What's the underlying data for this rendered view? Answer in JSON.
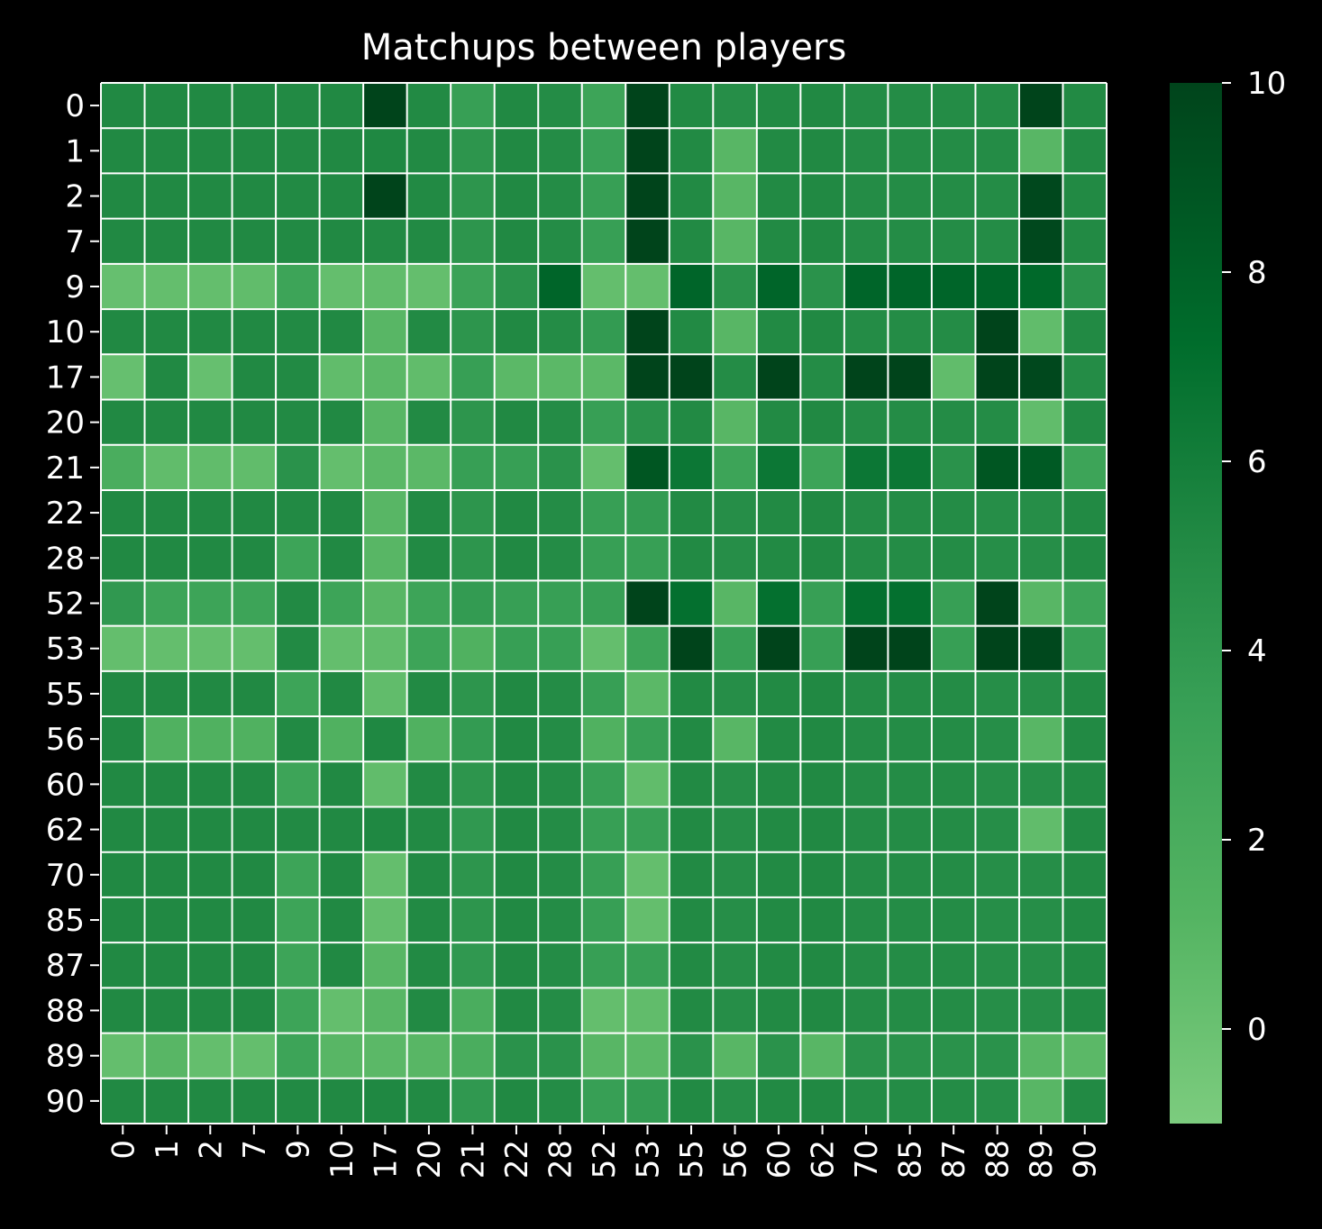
{
  "chart_data": {
    "type": "heatmap",
    "title": "Matchups between players",
    "xlabel": "",
    "ylabel": "",
    "x_categories": [
      "0",
      "1",
      "2",
      "7",
      "9",
      "10",
      "17",
      "20",
      "21",
      "22",
      "28",
      "52",
      "53",
      "55",
      "56",
      "60",
      "62",
      "70",
      "85",
      "87",
      "88",
      "89",
      "90"
    ],
    "y_categories": [
      "0",
      "1",
      "2",
      "7",
      "9",
      "10",
      "17",
      "20",
      "21",
      "22",
      "28",
      "52",
      "53",
      "55",
      "56",
      "60",
      "62",
      "70",
      "85",
      "87",
      "88",
      "89",
      "90"
    ],
    "values": [
      [
        5.2,
        5.2,
        5.2,
        5.2,
        5.1,
        5.2,
        10,
        5.1,
        3.5,
        5.2,
        5.0,
        3.0,
        10,
        5.1,
        4.8,
        5.1,
        5.2,
        5.0,
        5.0,
        5.0,
        5.0,
        10,
        5.1
      ],
      [
        5.2,
        5.2,
        5.2,
        5.2,
        5.1,
        5.2,
        5.3,
        5.1,
        4.3,
        5.2,
        5.0,
        3.3,
        10,
        5.1,
        1.0,
        5.1,
        5.2,
        5.0,
        5.0,
        5.0,
        5.0,
        1.0,
        5.1
      ],
      [
        5.2,
        5.2,
        5.2,
        5.2,
        5.1,
        5.2,
        10,
        5.1,
        4.3,
        5.2,
        5.0,
        3.5,
        10,
        5.1,
        1.0,
        5.1,
        5.2,
        5.0,
        5.0,
        5.0,
        5.0,
        9.7,
        5.1
      ],
      [
        5.2,
        5.2,
        5.2,
        5.2,
        5.1,
        5.2,
        5.1,
        5.1,
        4.3,
        5.2,
        5.0,
        3.5,
        10,
        5.1,
        1.0,
        5.1,
        5.2,
        5.0,
        5.0,
        5.0,
        5.0,
        9.7,
        5.1
      ],
      [
        0.2,
        0.3,
        0.3,
        0.5,
        3.0,
        0.3,
        0.5,
        0.3,
        3.2,
        4.5,
        7.8,
        0.3,
        0.3,
        7.8,
        4.5,
        7.8,
        4.5,
        7.8,
        7.8,
        7.8,
        7.8,
        7.5,
        4.5
      ],
      [
        5.2,
        5.2,
        5.2,
        5.2,
        5.1,
        5.2,
        1.0,
        5.1,
        4.3,
        5.2,
        5.0,
        3.8,
        10,
        5.1,
        1.0,
        5.1,
        5.2,
        5.0,
        5.0,
        5.0,
        10,
        0.5,
        5.1
      ],
      [
        0.2,
        5.2,
        0.2,
        5.2,
        5.1,
        0.5,
        0.8,
        0.5,
        3.5,
        0.8,
        0.8,
        0.8,
        10,
        10,
        5.0,
        10,
        5.0,
        10,
        10,
        0.5,
        10,
        9.7,
        5.0
      ],
      [
        5.2,
        5.2,
        5.2,
        5.2,
        5.1,
        5.2,
        1.0,
        5.1,
        4.3,
        5.2,
        5.0,
        3.5,
        4.5,
        5.1,
        1.0,
        5.1,
        5.2,
        5.0,
        5.0,
        5.0,
        5.0,
        0.5,
        5.1
      ],
      [
        2.0,
        0.5,
        0.5,
        0.5,
        4.5,
        0.3,
        0.8,
        0.8,
        3.5,
        3.5,
        4.5,
        0.3,
        8.8,
        6.5,
        3.0,
        6.5,
        3.0,
        6.5,
        6.5,
        4.5,
        8.8,
        8.5,
        3.0
      ],
      [
        5.2,
        5.2,
        5.2,
        5.2,
        5.1,
        5.2,
        1.0,
        5.1,
        4.3,
        5.2,
        5.0,
        3.5,
        3.8,
        5.1,
        4.8,
        5.1,
        5.2,
        5.0,
        5.0,
        5.0,
        4.8,
        4.8,
        5.1
      ],
      [
        5.2,
        5.2,
        5.2,
        5.2,
        3.0,
        5.2,
        1.0,
        5.1,
        4.3,
        5.2,
        5.0,
        3.5,
        3.5,
        5.1,
        4.8,
        5.1,
        5.2,
        5.0,
        5.0,
        5.0,
        4.8,
        4.8,
        5.1
      ],
      [
        4.0,
        3.0,
        3.0,
        3.0,
        5.1,
        3.0,
        1.0,
        3.0,
        3.8,
        3.5,
        3.5,
        3.5,
        10,
        7.0,
        1.0,
        7.0,
        3.5,
        7.0,
        7.0,
        3.5,
        10,
        1.0,
        3.0
      ],
      [
        0.3,
        0.3,
        0.3,
        0.3,
        5.1,
        0.3,
        0.5,
        3.0,
        1.5,
        3.5,
        3.5,
        0.3,
        3.0,
        10,
        3.5,
        10,
        3.5,
        10,
        10,
        3.5,
        10,
        9.7,
        3.5
      ],
      [
        5.2,
        5.2,
        5.2,
        5.2,
        3.0,
        5.2,
        0.5,
        5.1,
        4.3,
        5.2,
        5.0,
        3.5,
        0.8,
        5.1,
        4.8,
        5.1,
        5.2,
        5.0,
        5.0,
        5.0,
        4.8,
        4.8,
        5.1
      ],
      [
        5.2,
        1.5,
        1.5,
        1.5,
        5.1,
        1.5,
        5.3,
        1.5,
        3.8,
        5.2,
        5.0,
        1.5,
        3.5,
        5.1,
        1.0,
        5.1,
        5.2,
        5.0,
        5.0,
        5.0,
        4.8,
        1.0,
        5.1
      ],
      [
        5.2,
        5.2,
        5.2,
        5.2,
        3.0,
        5.2,
        0.5,
        5.1,
        4.3,
        5.2,
        5.0,
        3.5,
        0.5,
        5.1,
        4.8,
        5.1,
        5.2,
        5.0,
        5.0,
        5.0,
        4.8,
        4.8,
        5.1
      ],
      [
        5.2,
        5.2,
        5.2,
        5.2,
        5.1,
        5.2,
        5.3,
        5.1,
        4.0,
        5.2,
        5.0,
        3.5,
        3.5,
        5.1,
        4.8,
        5.1,
        5.2,
        5.0,
        5.0,
        5.0,
        4.8,
        0.5,
        5.1
      ],
      [
        5.2,
        5.2,
        5.2,
        5.2,
        3.0,
        5.2,
        0.3,
        5.1,
        4.3,
        5.2,
        5.0,
        3.5,
        0.3,
        5.1,
        4.8,
        5.1,
        5.2,
        5.0,
        5.0,
        5.0,
        4.8,
        4.8,
        5.1
      ],
      [
        5.2,
        5.2,
        5.2,
        5.2,
        3.0,
        5.2,
        0.3,
        5.1,
        4.3,
        5.2,
        5.0,
        3.5,
        0.3,
        5.1,
        4.8,
        5.1,
        5.2,
        5.0,
        5.0,
        5.0,
        4.8,
        4.8,
        5.1
      ],
      [
        5.2,
        5.2,
        5.2,
        5.2,
        3.0,
        5.2,
        1.0,
        5.1,
        4.0,
        5.2,
        5.0,
        3.5,
        3.5,
        5.1,
        4.8,
        5.1,
        5.2,
        5.0,
        5.0,
        5.0,
        4.8,
        4.8,
        5.1
      ],
      [
        5.2,
        5.2,
        5.2,
        5.2,
        3.0,
        0.3,
        1.0,
        5.1,
        2.0,
        5.2,
        5.0,
        0.3,
        0.5,
        5.1,
        4.8,
        5.1,
        5.2,
        5.0,
        5.0,
        5.0,
        4.8,
        4.8,
        5.1
      ],
      [
        0.3,
        1.0,
        0.3,
        0.3,
        3.0,
        1.0,
        0.8,
        1.0,
        2.0,
        4.5,
        4.5,
        1.0,
        0.8,
        4.5,
        1.0,
        4.5,
        1.0,
        4.5,
        4.5,
        4.5,
        4.5,
        1.0,
        0.8
      ],
      [
        5.2,
        5.2,
        5.2,
        5.2,
        5.1,
        5.2,
        5.3,
        5.1,
        4.0,
        5.2,
        5.0,
        3.5,
        3.8,
        5.1,
        4.8,
        5.1,
        5.2,
        5.0,
        5.0,
        5.0,
        4.8,
        1.0,
        5.1
      ]
    ],
    "colorbar": {
      "vmin": -1,
      "vmax": 10,
      "ticks": [
        0,
        2,
        4,
        6,
        8,
        10
      ],
      "colormap": "Greens",
      "color_low": "#7ccc7e",
      "color_high": "#00441b"
    },
    "grid": true,
    "grid_color": "#ffffff",
    "background_color": "#000000",
    "text_color": "#ffffff"
  }
}
